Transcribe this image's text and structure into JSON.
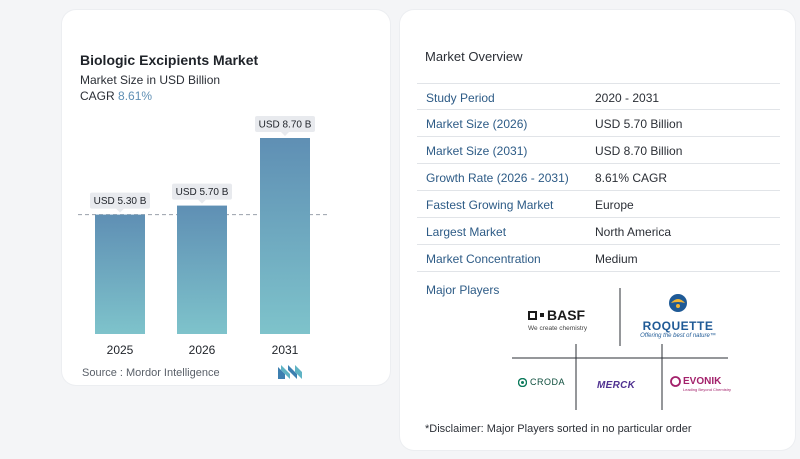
{
  "chart": {
    "title": "Biologic Excipients Market",
    "subtitle": "Market Size in USD Billion",
    "cagr_label": "CAGR",
    "cagr_value": "8.61%",
    "source": "Source :  Mordor Intelligence"
  },
  "chart_data": {
    "type": "bar",
    "categories": [
      "2025",
      "2026",
      "2031"
    ],
    "values": [
      5.3,
      5.7,
      8.7
    ],
    "data_labels": [
      "USD 5.30 B",
      "USD 5.70 B",
      "USD 8.70 B"
    ],
    "title": "Biologic Excipients Market",
    "subtitle": "Market Size in USD Billion",
    "xlabel": "",
    "ylabel": "",
    "ylim": [
      0,
      8.7
    ],
    "grid": false,
    "reference_line_value": 5.3,
    "colors": {
      "bar_top": "#5f8fb4",
      "bar_bottom": "#7ec3cb",
      "label_bg": "#e8eaee"
    }
  },
  "overview": {
    "title": "Market Overview",
    "rows": [
      {
        "label": "Study Period",
        "value": "2020 - 2031"
      },
      {
        "label": "Market Size (2026)",
        "value": "USD 5.70 Billion"
      },
      {
        "label": "Market Size (2031)",
        "value": "USD 8.70 Billion"
      },
      {
        "label": "Growth Rate (2026 - 2031)",
        "value": "8.61% CAGR"
      },
      {
        "label": "Fastest Growing Market",
        "value": "Europe"
      },
      {
        "label": "Largest Market",
        "value": "North America"
      },
      {
        "label": "Market Concentration",
        "value": "Medium"
      }
    ],
    "players_title": "Major Players",
    "players": {
      "basf": {
        "name": "BASF",
        "tagline": "We create chemistry"
      },
      "roquette": {
        "name": "ROQUETTE",
        "tagline": "Offering the best of nature™"
      },
      "croda": {
        "name": "CRODA"
      },
      "merck": {
        "name": "MERCK"
      },
      "evonik": {
        "name": "EVONIK",
        "tagline": "Leading Beyond Chemistry"
      }
    },
    "disclaimer": "*Disclaimer: Major Players sorted in no particular order"
  }
}
